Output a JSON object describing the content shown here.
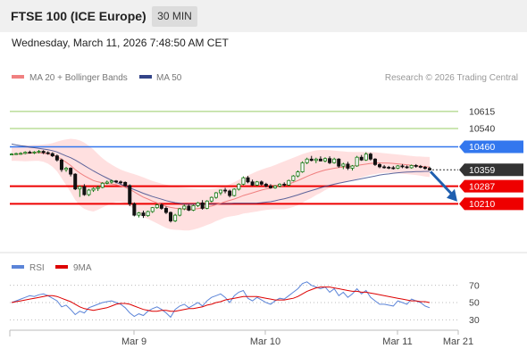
{
  "header": {
    "title": "FTSE 100 (ICE Europe)",
    "timeframe": "30 MIN",
    "datetime": "Wednesday, March 11, 2026 7:48:50 AM CET"
  },
  "credit": "Research © 2026 Trading Central",
  "colors": {
    "support": "#ee0000",
    "resistance_main": "#3377ee",
    "resistance_minor": "#99cc66",
    "last_price": "#333333",
    "candle_up": "#117711",
    "candle_down": "#111111",
    "bollinger": "#ffbbbb",
    "ma20": "#f08080",
    "ma50": "#334488",
    "arrow": "#1f5faf",
    "rsi": "#5b84d8",
    "rsi_ma": "#dd0000"
  },
  "chart_data": [
    {
      "type": "candlestick",
      "legend": [
        {
          "label": "MA 20 + Bollinger Bands",
          "color": "#f08080"
        },
        {
          "label": "MA 50",
          "color": "#334488"
        }
      ],
      "ylim": [
        10000,
        10720
      ],
      "levels": [
        {
          "value": 10615,
          "label": "10615",
          "kind": "resistance_minor"
        },
        {
          "value": 10540,
          "label": "10540",
          "kind": "resistance_minor"
        },
        {
          "value": 10460,
          "label": "10460",
          "kind": "resistance_main"
        },
        {
          "value": 10359,
          "label": "10359",
          "kind": "last_price"
        },
        {
          "value": 10287,
          "label": "10287",
          "kind": "support"
        },
        {
          "value": 10210,
          "label": "10210",
          "kind": "support"
        }
      ],
      "candles": [
        [
          10428,
          10432,
          10423,
          10428
        ],
        [
          10428,
          10434,
          10424,
          10430
        ],
        [
          10430,
          10436,
          10425,
          10431
        ],
        [
          10431,
          10440,
          10427,
          10436
        ],
        [
          10436,
          10443,
          10430,
          10435
        ],
        [
          10435,
          10441,
          10428,
          10437
        ],
        [
          10437,
          10446,
          10431,
          10440
        ],
        [
          10440,
          10445,
          10428,
          10434
        ],
        [
          10434,
          10440,
          10425,
          10430
        ],
        [
          10430,
          10436,
          10415,
          10420
        ],
        [
          10420,
          10426,
          10395,
          10402
        ],
        [
          10402,
          10408,
          10350,
          10360
        ],
        [
          10360,
          10372,
          10350,
          10366
        ],
        [
          10366,
          10370,
          10330,
          10340
        ],
        [
          10340,
          10344,
          10270,
          10275
        ],
        [
          10275,
          10290,
          10240,
          10285
        ],
        [
          10285,
          10296,
          10245,
          10250
        ],
        [
          10250,
          10275,
          10244,
          10270
        ],
        [
          10270,
          10282,
          10262,
          10277
        ],
        [
          10277,
          10290,
          10266,
          10282
        ],
        [
          10282,
          10305,
          10278,
          10300
        ],
        [
          10300,
          10312,
          10295,
          10305
        ],
        [
          10305,
          10316,
          10298,
          10310
        ],
        [
          10310,
          10314,
          10300,
          10306
        ],
        [
          10306,
          10312,
          10296,
          10304
        ],
        [
          10304,
          10308,
          10285,
          10290
        ],
        [
          10290,
          10295,
          10200,
          10210
        ],
        [
          10210,
          10216,
          10155,
          10160
        ],
        [
          10160,
          10174,
          10150,
          10170
        ],
        [
          10170,
          10180,
          10148,
          10158
        ],
        [
          10158,
          10180,
          10153,
          10176
        ],
        [
          10176,
          10196,
          10170,
          10193
        ],
        [
          10193,
          10210,
          10188,
          10205
        ],
        [
          10205,
          10212,
          10184,
          10190
        ],
        [
          10190,
          10198,
          10165,
          10172
        ],
        [
          10172,
          10176,
          10128,
          10135
        ],
        [
          10135,
          10166,
          10130,
          10160
        ],
        [
          10160,
          10192,
          10155,
          10188
        ],
        [
          10188,
          10206,
          10182,
          10200
        ],
        [
          10200,
          10206,
          10178,
          10182
        ],
        [
          10182,
          10206,
          10178,
          10202
        ],
        [
          10202,
          10218,
          10196,
          10214
        ],
        [
          10214,
          10226,
          10184,
          10190
        ],
        [
          10190,
          10226,
          10186,
          10222
        ],
        [
          10222,
          10242,
          10216,
          10238
        ],
        [
          10238,
          10262,
          10232,
          10258
        ],
        [
          10258,
          10272,
          10248,
          10270
        ],
        [
          10270,
          10280,
          10256,
          10266
        ],
        [
          10266,
          10272,
          10238,
          10246
        ],
        [
          10246,
          10278,
          10242,
          10274
        ],
        [
          10274,
          10300,
          10268,
          10296
        ],
        [
          10296,
          10330,
          10292,
          10324
        ],
        [
          10324,
          10332,
          10300,
          10306
        ],
        [
          10306,
          10316,
          10288,
          10292
        ],
        [
          10292,
          10310,
          10288,
          10306
        ],
        [
          10306,
          10312,
          10290,
          10296
        ],
        [
          10296,
          10302,
          10282,
          10288
        ],
        [
          10288,
          10296,
          10276,
          10280
        ],
        [
          10280,
          10292,
          10276,
          10288
        ],
        [
          10288,
          10300,
          10282,
          10296
        ],
        [
          10296,
          10304,
          10286,
          10292
        ],
        [
          10292,
          10316,
          10288,
          10312
        ],
        [
          10312,
          10336,
          10308,
          10332
        ],
        [
          10332,
          10356,
          10326,
          10350
        ],
        [
          10350,
          10396,
          10346,
          10390
        ],
        [
          10390,
          10412,
          10384,
          10406
        ],
        [
          10406,
          10420,
          10396,
          10400
        ],
        [
          10400,
          10412,
          10388,
          10406
        ],
        [
          10406,
          10418,
          10396,
          10398
        ],
        [
          10398,
          10414,
          10392,
          10408
        ],
        [
          10408,
          10418,
          10384,
          10390
        ],
        [
          10390,
          10412,
          10386,
          10406
        ],
        [
          10406,
          10410,
          10368,
          10375
        ],
        [
          10375,
          10390,
          10362,
          10384
        ],
        [
          10384,
          10394,
          10358,
          10366
        ],
        [
          10366,
          10380,
          10356,
          10376
        ],
        [
          10376,
          10420,
          10372,
          10414
        ],
        [
          10414,
          10424,
          10398,
          10402
        ],
        [
          10402,
          10436,
          10398,
          10428
        ],
        [
          10428,
          10434,
          10400,
          10406
        ],
        [
          10406,
          10410,
          10376,
          10382
        ],
        [
          10382,
          10388,
          10366,
          10372
        ],
        [
          10372,
          10380,
          10364,
          10370
        ],
        [
          10370,
          10376,
          10362,
          10368
        ],
        [
          10368,
          10376,
          10360,
          10366
        ],
        [
          10366,
          10380,
          10362,
          10376
        ],
        [
          10376,
          10384,
          10366,
          10372
        ],
        [
          10372,
          10378,
          10364,
          10368
        ],
        [
          10368,
          10382,
          10364,
          10378
        ],
        [
          10378,
          10384,
          10368,
          10374
        ],
        [
          10374,
          10380,
          10366,
          10370
        ],
        [
          10370,
          10376,
          10360,
          10365
        ],
        [
          10365,
          10372,
          10356,
          10359
        ]
      ],
      "ma20": [
        10425,
        10427,
        10429,
        10431,
        10432,
        10433,
        10433,
        10432,
        10429,
        10424,
        10417,
        10405,
        10392,
        10378,
        10360,
        10345,
        10333,
        10322,
        10312,
        10306,
        10302,
        10299,
        10297,
        10294,
        10289,
        10282,
        10273,
        10262,
        10250,
        10239,
        10231,
        10222,
        10214,
        10206,
        10199,
        10194,
        10191,
        10189,
        10187,
        10186,
        10187,
        10189,
        10192,
        10196,
        10200,
        10206,
        10212,
        10219,
        10225,
        10231,
        10238,
        10246,
        10252,
        10258,
        10264,
        10270,
        10275,
        10279,
        10283,
        10287,
        10291,
        10297,
        10304,
        10312,
        10321,
        10330,
        10338,
        10346,
        10352,
        10358,
        10362,
        10366,
        10369,
        10371,
        10373,
        10375,
        10378,
        10381,
        10384,
        10387,
        10388,
        10389,
        10389,
        10388,
        10387,
        10385,
        10383,
        10381,
        10379,
        10377,
        10375,
        10373,
        10371
      ],
      "bollinger_upper": [
        10462,
        10463,
        10465,
        10466,
        10467,
        10468,
        10468,
        10470,
        10472,
        10476,
        10482,
        10488,
        10492,
        10495,
        10493,
        10488,
        10478,
        10464,
        10448,
        10428,
        10410,
        10395,
        10382,
        10370,
        10360,
        10352,
        10346,
        10340,
        10333,
        10326,
        10318,
        10310,
        10304,
        10298,
        10294,
        10290,
        10286,
        10283,
        10281,
        10279,
        10277,
        10276,
        10275,
        10275,
        10276,
        10278,
        10282,
        10288,
        10296,
        10305,
        10315,
        10325,
        10334,
        10343,
        10352,
        10360,
        10367,
        10373,
        10380,
        10388,
        10396,
        10404,
        10412,
        10420,
        10428,
        10434,
        10440,
        10444,
        10446,
        10446,
        10445,
        10443,
        10441,
        10440,
        10438,
        10437,
        10437,
        10437,
        10437,
        10437,
        10436,
        10434,
        10432,
        10430,
        10428,
        10426,
        10424,
        10422,
        10420,
        10418,
        10417,
        10416,
        10415
      ],
      "bollinger_lower": [
        10398,
        10398,
        10397,
        10396,
        10397,
        10398,
        10398,
        10394,
        10386,
        10372,
        10352,
        10322,
        10292,
        10261,
        10227,
        10202,
        10188,
        10180,
        10176,
        10184,
        10194,
        10203,
        10212,
        10218,
        10218,
        10212,
        10200,
        10184,
        10167,
        10152,
        10144,
        10134,
        10124,
        10114,
        10104,
        10098,
        10096,
        10095,
        10093,
        10093,
        10097,
        10102,
        10109,
        10117,
        10124,
        10134,
        10142,
        10150,
        10154,
        10157,
        10161,
        10167,
        10170,
        10173,
        10176,
        10180,
        10183,
        10185,
        10186,
        10186,
        10186,
        10190,
        10196,
        10204,
        10214,
        10226,
        10236,
        10248,
        10258,
        10270,
        10279,
        10289,
        10297,
        10302,
        10308,
        10313,
        10319,
        10325,
        10331,
        10337,
        10340,
        10344,
        10346,
        10346,
        10346,
        10344,
        10342,
        10340,
        10338,
        10336,
        10333,
        10330,
        10327
      ],
      "ma50": [
        10472,
        10468,
        10465,
        10462,
        10458,
        10456,
        10453,
        10450,
        10447,
        10443,
        10437,
        10428,
        10420,
        10412,
        10402,
        10390,
        10378,
        10366,
        10354,
        10343,
        10333,
        10323,
        10313,
        10304,
        10296,
        10288,
        10280,
        10272,
        10264,
        10256,
        10249,
        10242,
        10236,
        10230,
        10224,
        10219,
        10215,
        10212,
        10209,
        10208,
        10208,
        10208,
        10208,
        10209,
        10209,
        10209,
        10210,
        10210,
        10211,
        10212,
        10212,
        10212,
        10212,
        10212,
        10213,
        10215,
        10217,
        10219,
        10223,
        10228,
        10232,
        10237,
        10243,
        10249,
        10256,
        10262,
        10268,
        10274,
        10280,
        10286,
        10291,
        10296,
        10300,
        10304,
        10308,
        10312,
        10316,
        10320,
        10324,
        10328,
        10332,
        10336,
        10339,
        10341,
        10344,
        10346,
        10348,
        10349,
        10350,
        10351,
        10351,
        10352,
        10352
      ],
      "forecast_arrow": {
        "from": 10359,
        "to": 10220
      },
      "x_ticks": [
        "Mar 9",
        "Mar 10",
        "Mar 11",
        "Mar 21"
      ]
    },
    {
      "type": "line",
      "legend": [
        {
          "label": "RSI",
          "color": "#5b84d8"
        },
        {
          "label": "9MA",
          "color": "#dd0000"
        }
      ],
      "ylim": [
        20,
        80
      ],
      "y_ticks": [
        70,
        50,
        30
      ],
      "rsi": [
        50,
        52,
        54,
        56,
        58,
        57,
        59,
        60,
        58,
        55,
        52,
        45,
        47,
        42,
        36,
        40,
        38,
        44,
        46,
        48,
        50,
        51,
        52,
        50,
        48,
        44,
        38,
        34,
        37,
        35,
        40,
        43,
        45,
        42,
        38,
        33,
        42,
        46,
        48,
        44,
        47,
        50,
        46,
        52,
        56,
        58,
        60,
        56,
        50,
        58,
        62,
        64,
        55,
        52,
        56,
        53,
        50,
        48,
        52,
        55,
        54,
        58,
        62,
        66,
        72,
        74,
        70,
        68,
        66,
        68,
        62,
        66,
        58,
        62,
        56,
        60,
        66,
        60,
        64,
        56,
        52,
        48,
        48,
        47,
        46,
        52,
        50,
        48,
        54,
        52,
        50,
        46,
        44
      ],
      "rsi_ma": [
        50,
        51,
        52,
        53,
        54,
        55,
        56,
        57,
        58,
        58,
        57,
        55,
        53,
        51,
        48,
        45,
        43,
        42,
        41,
        42,
        43,
        44,
        46,
        48,
        49,
        49,
        48,
        46,
        44,
        42,
        41,
        40,
        40,
        41,
        41,
        40,
        40,
        41,
        42,
        43,
        43,
        44,
        45,
        47,
        48,
        50,
        51,
        53,
        54,
        55,
        56,
        57,
        57,
        57,
        57,
        56,
        55,
        54,
        53,
        53,
        53,
        54,
        55,
        57,
        60,
        63,
        65,
        67,
        68,
        68,
        68,
        67,
        66,
        65,
        64,
        63,
        63,
        62,
        62,
        61,
        60,
        59,
        58,
        57,
        56,
        55,
        54,
        53,
        52,
        52,
        51,
        51,
        50
      ]
    }
  ]
}
